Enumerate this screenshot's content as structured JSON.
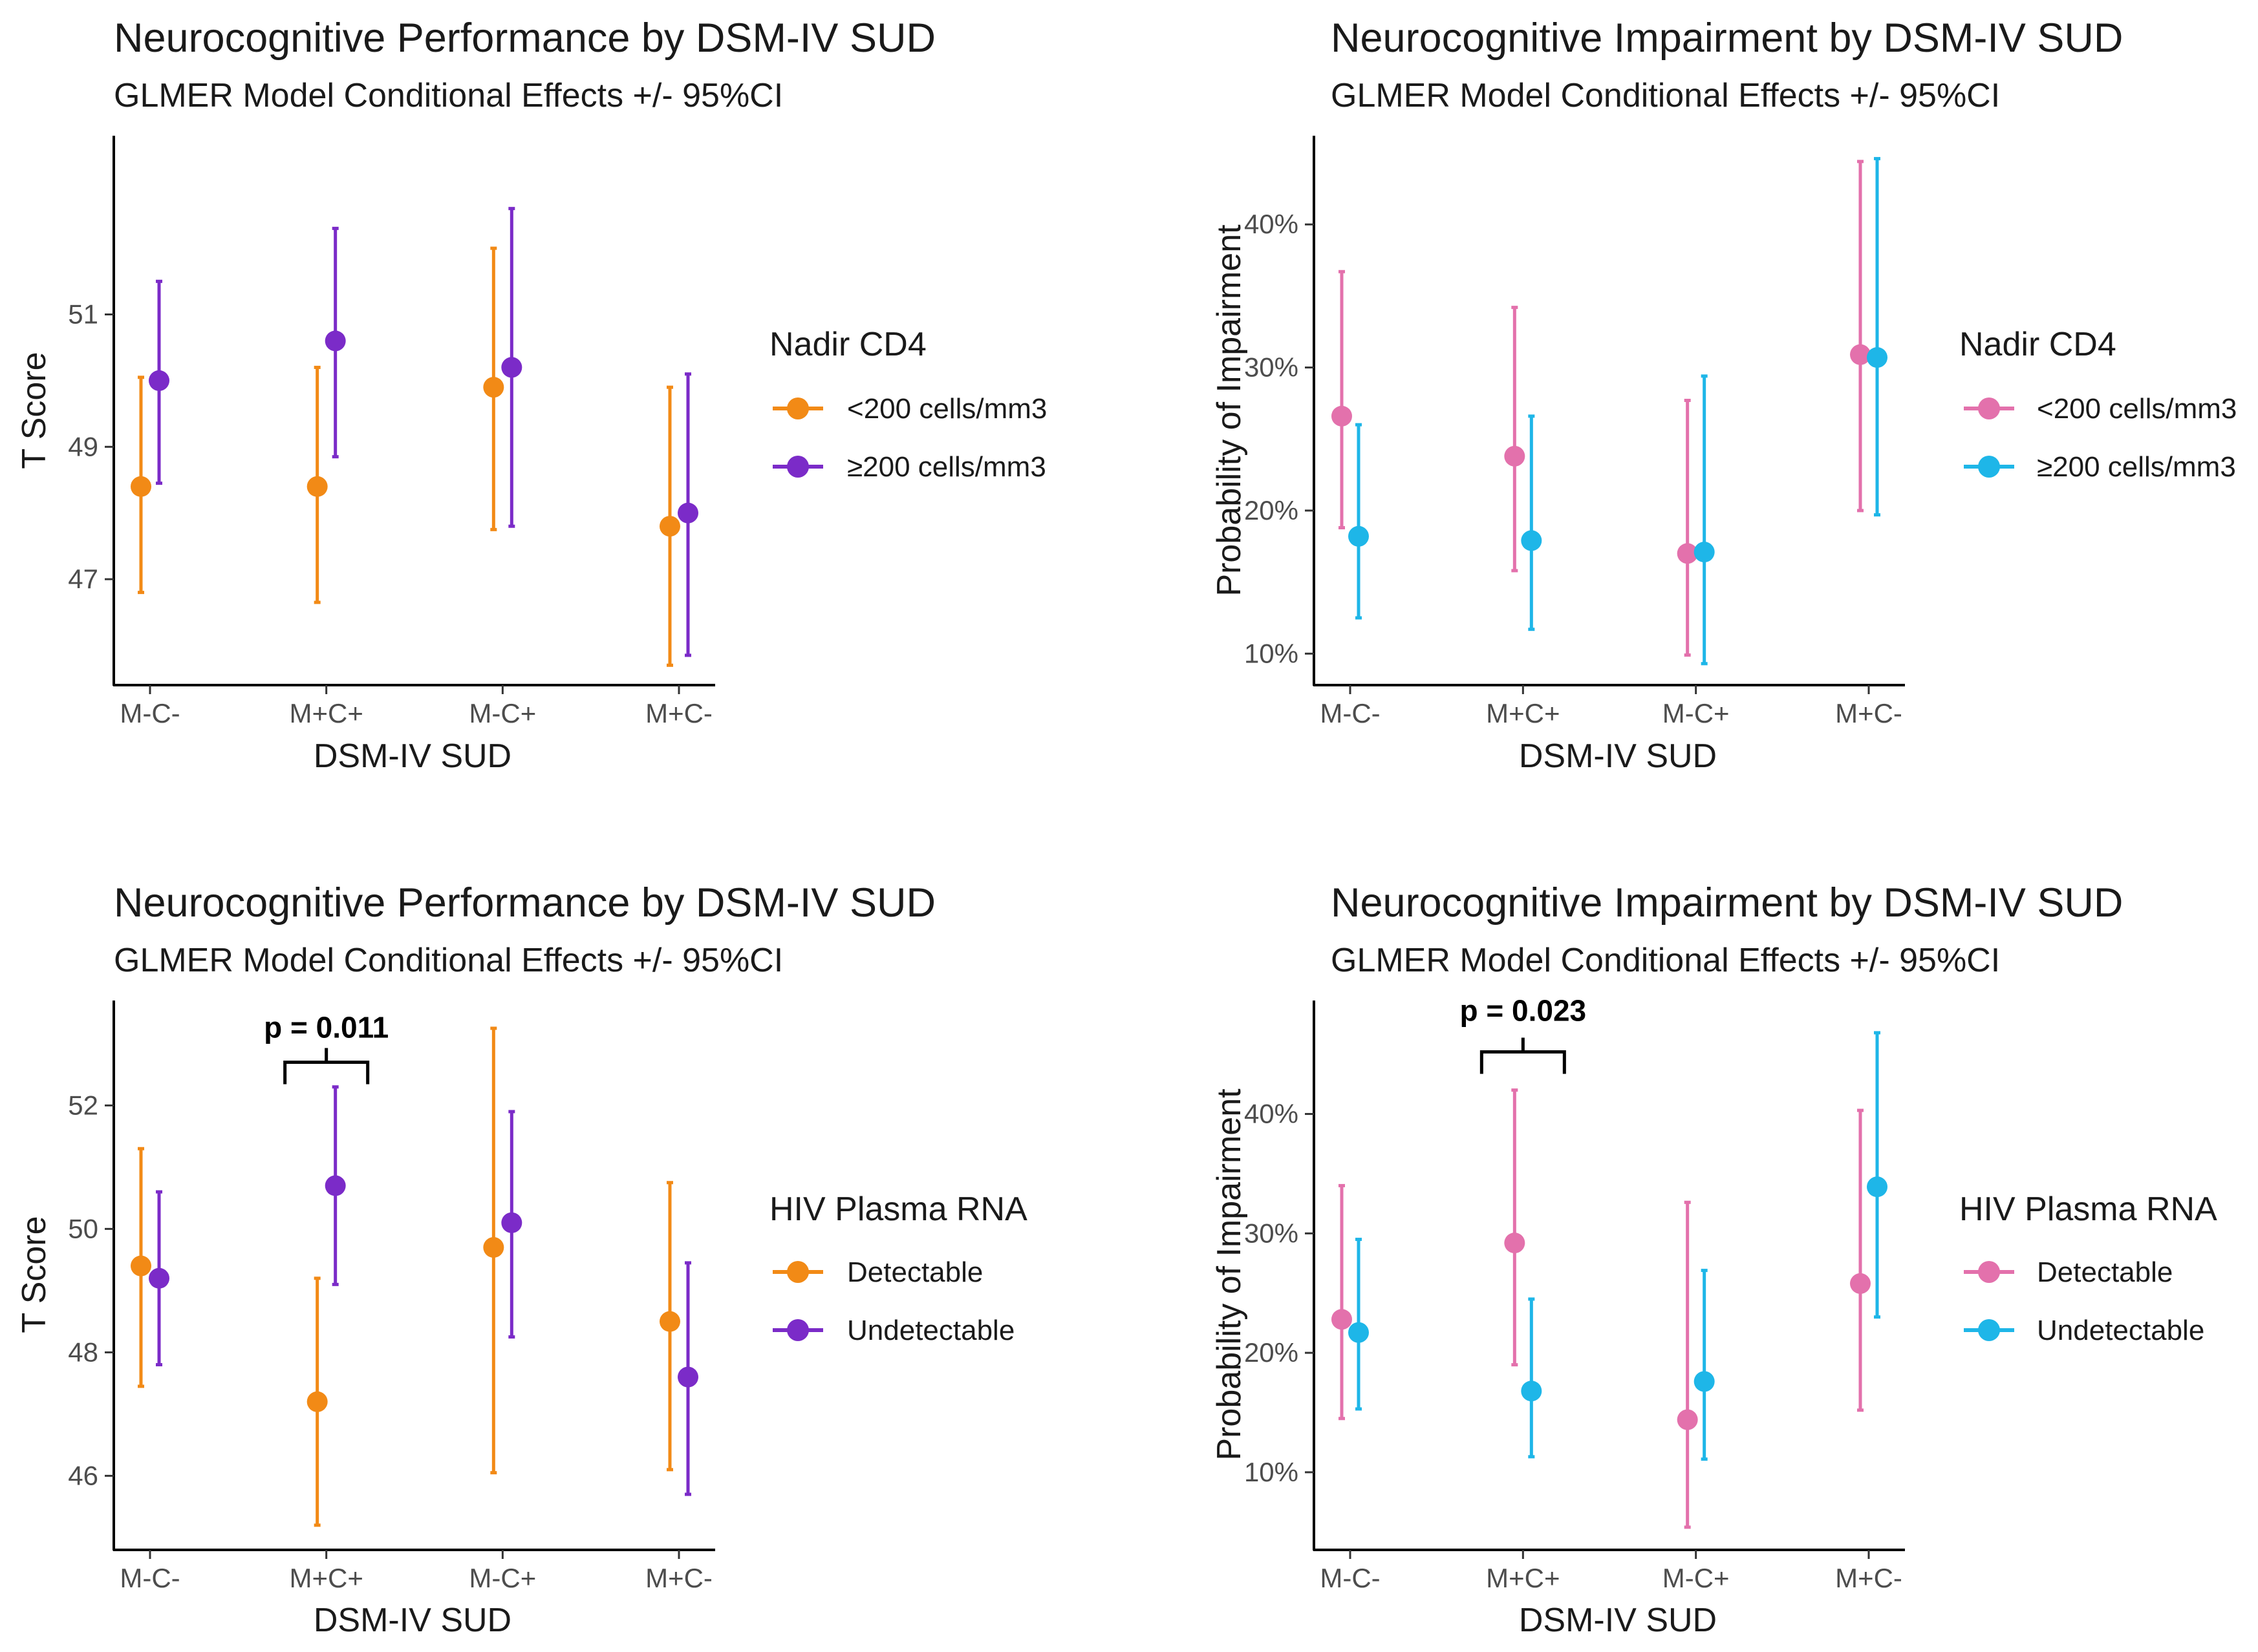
{
  "colors": {
    "orange": "#F28A16",
    "purple": "#7B2BC8",
    "pink": "#E371AC",
    "cyan": "#1EB6E8"
  },
  "chart_data": [
    {
      "type": "scatter",
      "title": "Neurocognitive Performance by DSM-IV SUD",
      "subtitle": "GLMER Model Conditional Effects +/- 95%CI",
      "xlabel": "DSM-IV SUD",
      "ylabel": "T Score",
      "categories": [
        "M-C-",
        "M+C+",
        "M-C+",
        "M+C-"
      ],
      "ylim": [
        45.4,
        53.7
      ],
      "yticks": [
        47,
        49,
        51
      ],
      "ytick_labels": [
        "47",
        "49",
        "51"
      ],
      "legend_title": "Nadir CD4",
      "series": [
        {
          "name": "<200 cells/mm3",
          "color": "#F28A16",
          "values": [
            48.4,
            48.4,
            49.9,
            47.8
          ],
          "lower": [
            46.8,
            46.65,
            47.75,
            45.7
          ],
          "upper": [
            50.05,
            50.2,
            52.0,
            49.9
          ]
        },
        {
          "name": "≥200 cells/mm3",
          "color": "#7B2BC8",
          "values": [
            50.0,
            50.6,
            50.2,
            48.0
          ],
          "lower": [
            48.45,
            48.85,
            47.8,
            45.85
          ],
          "upper": [
            51.5,
            52.3,
            52.6,
            50.1
          ]
        }
      ]
    },
    {
      "type": "scatter",
      "title": "Neurocognitive Impairment by DSM-IV SUD",
      "subtitle": "GLMER Model Conditional Effects +/- 95%CI",
      "xlabel": "DSM-IV SUD",
      "ylabel": "Probability of Impairment",
      "categories": [
        "M-C-",
        "M+C+",
        "M-C+",
        "M+C-"
      ],
      "ylim": [
        7.8,
        46.2
      ],
      "yticks": [
        10,
        20,
        30,
        40
      ],
      "ytick_labels": [
        "10%",
        "20%",
        "30%",
        "40%"
      ],
      "legend_title": "Nadir CD4",
      "series": [
        {
          "name": "<200 cells/mm3",
          "color": "#E371AC",
          "values": [
            26.6,
            23.8,
            17.0,
            30.9
          ],
          "lower": [
            18.8,
            15.8,
            9.9,
            20.0
          ],
          "upper": [
            36.7,
            34.2,
            27.7,
            44.4
          ]
        },
        {
          "name": "≥200 cells/mm3",
          "color": "#1EB6E8",
          "values": [
            18.2,
            17.9,
            17.1,
            30.7
          ],
          "lower": [
            12.5,
            11.7,
            9.3,
            19.7
          ],
          "upper": [
            26.0,
            26.6,
            29.4,
            44.6
          ]
        }
      ]
    },
    {
      "type": "scatter",
      "title": "Neurocognitive Performance by DSM-IV SUD",
      "subtitle": "GLMER Model Conditional Effects +/- 95%CI",
      "xlabel": "DSM-IV SUD",
      "ylabel": "T Score",
      "categories": [
        "M-C-",
        "M+C+",
        "M-C+",
        "M+C-"
      ],
      "ylim": [
        44.8,
        53.7
      ],
      "yticks": [
        46,
        48,
        50,
        52
      ],
      "ytick_labels": [
        "46",
        "48",
        "50",
        "52"
      ],
      "legend_title": "HIV Plasma RNA",
      "annotation": {
        "text": "p = 0.011",
        "category": "M+C+",
        "y": 52.7,
        "label_y": 53.1
      },
      "series": [
        {
          "name": "Detectable",
          "color": "#F28A16",
          "values": [
            49.4,
            47.2,
            49.7,
            48.5
          ],
          "lower": [
            47.45,
            45.2,
            46.05,
            46.1
          ],
          "upper": [
            51.3,
            49.2,
            53.25,
            50.75
          ]
        },
        {
          "name": "Undetectable",
          "color": "#7B2BC8",
          "values": [
            49.2,
            50.7,
            50.1,
            47.6
          ],
          "lower": [
            47.8,
            49.1,
            48.25,
            45.7
          ],
          "upper": [
            50.6,
            52.3,
            51.9,
            49.45
          ]
        }
      ]
    },
    {
      "type": "scatter",
      "title": "Neurocognitive Impairment by DSM-IV SUD",
      "subtitle": "GLMER Model Conditional Effects +/- 95%CI",
      "xlabel": "DSM-IV SUD",
      "ylabel": "Probability of Impairment",
      "categories": [
        "M-C-",
        "M+C+",
        "M-C+",
        "M+C-"
      ],
      "ylim": [
        3.5,
        49.5
      ],
      "yticks": [
        10,
        20,
        30,
        40
      ],
      "ytick_labels": [
        "10%",
        "20%",
        "30%",
        "40%"
      ],
      "legend_title": "HIV Plasma RNA",
      "annotation": {
        "text": "p = 0.023",
        "category": "M+C+",
        "y": 45.2,
        "label_y": 47.8
      },
      "series": [
        {
          "name": "Detectable",
          "color": "#E371AC",
          "values": [
            22.8,
            29.2,
            14.4,
            25.8
          ],
          "lower": [
            14.5,
            19.0,
            5.4,
            15.2
          ],
          "upper": [
            34.0,
            42.0,
            32.6,
            40.3
          ]
        },
        {
          "name": "Undetectable",
          "color": "#1EB6E8",
          "values": [
            21.7,
            16.8,
            17.6,
            33.9
          ],
          "lower": [
            15.3,
            11.3,
            11.1,
            23.0
          ],
          "upper": [
            29.5,
            24.5,
            26.9,
            46.8
          ]
        }
      ]
    }
  ]
}
